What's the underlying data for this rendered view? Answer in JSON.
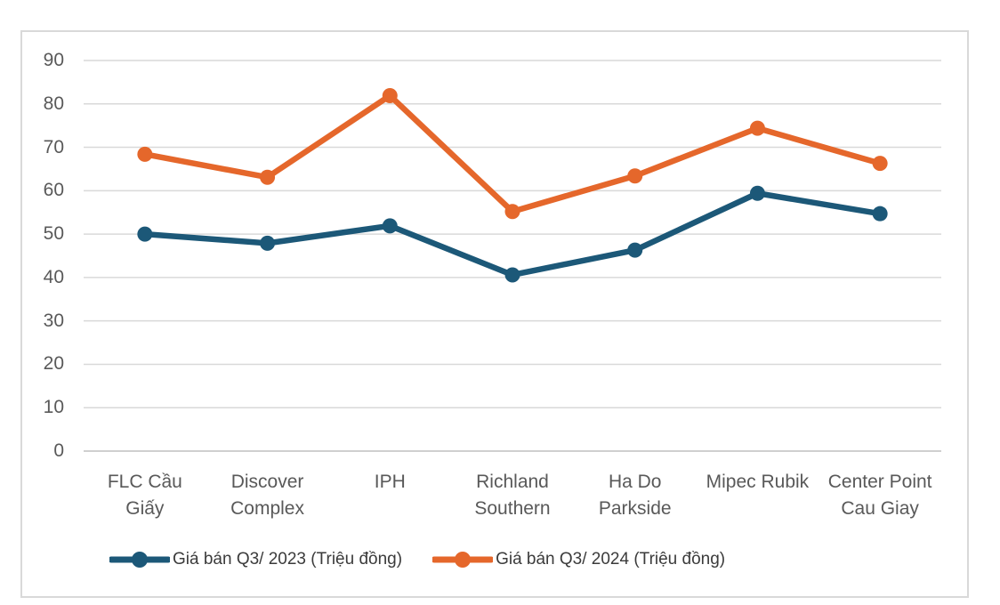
{
  "chart_data": {
    "type": "line",
    "title": "",
    "xlabel": "",
    "ylabel": "",
    "categories": [
      "FLC Cầu Giấy",
      "Discover Complex",
      "IPH",
      "Richland Southern",
      "Ha Do Parkside",
      "Mipec Rubik",
      "Center Point Cau Giay"
    ],
    "category_label_lines": [
      [
        "FLC Cầu",
        "Giấy"
      ],
      [
        "Discover",
        "Complex"
      ],
      [
        "IPH"
      ],
      [
        "Richland",
        "Southern"
      ],
      [
        "Ha Do",
        "Parkside"
      ],
      [
        "Mipec Rubik"
      ],
      [
        "Center Point",
        "Cau Giay"
      ]
    ],
    "series": [
      {
        "name": "Giá bán Q3/ 2023 (Triệu đồng)",
        "color": "#1C5878",
        "values": [
          50.0,
          47.9,
          51.9,
          40.6,
          46.3,
          59.4,
          54.7
        ]
      },
      {
        "name": "Giá bán Q3/ 2024 (Triệu đồng)",
        "color": "#E5672B",
        "values": [
          68.4,
          63.1,
          81.9,
          55.2,
          63.4,
          74.4,
          66.3
        ]
      }
    ],
    "ylim": [
      0,
      90
    ],
    "yticks": [
      0,
      10,
      20,
      30,
      40,
      50,
      60,
      70,
      80,
      90
    ],
    "grid": "horizontal",
    "legend_position": "bottom",
    "colors": {
      "gridline": "#D9D9D9",
      "axis_line": "#BFBFBF",
      "tick_label": "#595959",
      "legend_text": "#3B3B3B",
      "frame_border": "#D9D9D9",
      "background": "#FFFFFF"
    }
  }
}
